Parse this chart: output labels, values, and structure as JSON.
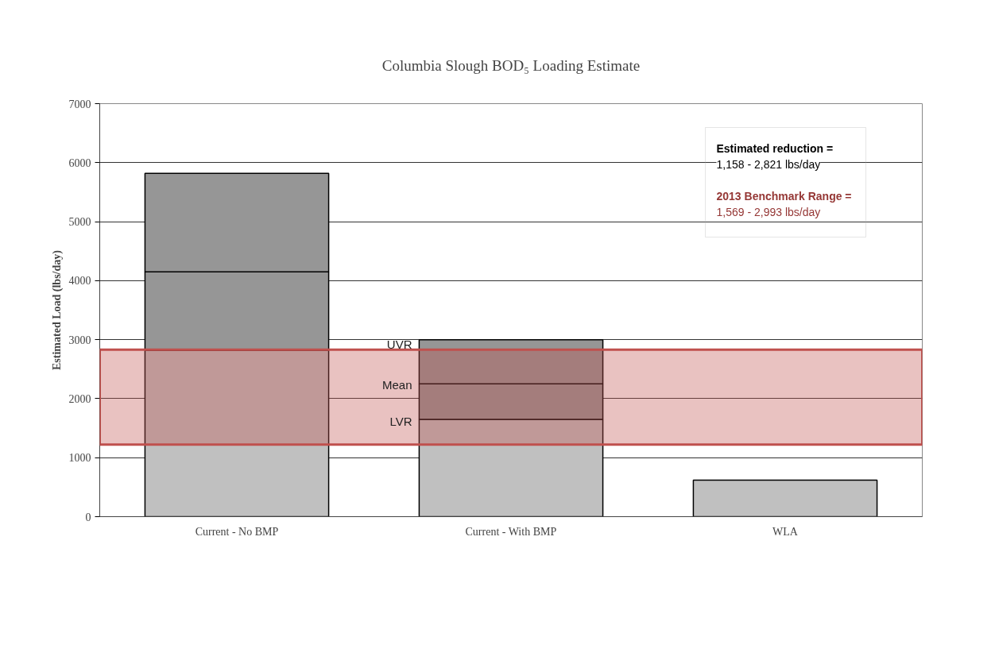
{
  "chart_data": {
    "type": "bar",
    "title": "Columbia Slough BOD₅ Loading Estimate",
    "ylabel": "Estimated Load (lbs/day)",
    "categories": [
      "Current - No BMP",
      "Current - With BMP",
      "WLA"
    ],
    "stacked": true,
    "series": [
      {
        "color": "#c0c0c0",
        "values": [
          2820,
          1650,
          620
        ]
      },
      {
        "color": "#969696",
        "values": [
          1330,
          600,
          null
        ]
      },
      {
        "color": "#969696",
        "values": [
          1670,
          750,
          null
        ]
      }
    ],
    "ylim": [
      0,
      7000
    ],
    "yticks": [
      0,
      1000,
      2000,
      3000,
      4000,
      5000,
      6000,
      7000
    ],
    "grid": "y",
    "bands": [
      {
        "axis": "y",
        "from": 1220,
        "to": 2830,
        "color": "#c0504d"
      }
    ],
    "annotations": [
      "UVR",
      "Mean",
      "LVR",
      "Estimated reduction =",
      "1,158 - 2,821 lbs/day",
      "2013 Benchmark Range =",
      "1,569 - 2,993 lbs/day"
    ]
  }
}
